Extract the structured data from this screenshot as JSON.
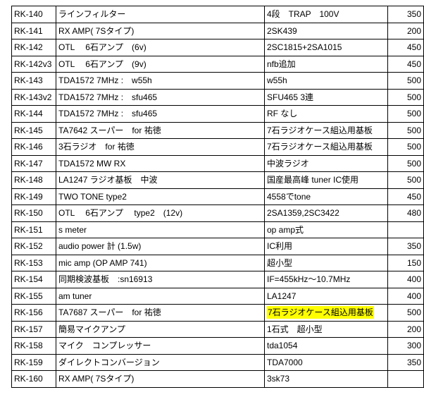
{
  "highlight_color": "#ffff00",
  "rows": [
    {
      "id": "RK-140",
      "name": "ラインフィルター",
      "note": "4段　TRAP　100V",
      "num": "350"
    },
    {
      "id": "RK-141",
      "name": "RX AMP( 7Sタイプ)",
      "note": "2SK439",
      "num": "200"
    },
    {
      "id": "RK-142",
      "name": "OTL　 6石アンプ　(6v)",
      "note": "2SC1815+2SA1015",
      "num": "450"
    },
    {
      "id": "RK-142v3",
      "name": "OTL　 6石アンプ　(9v)",
      "note": "nfb追加",
      "num": "450"
    },
    {
      "id": "RK-143",
      "name": "TDA1572  7MHz :　w55h",
      "note": "w55h",
      "num": "500"
    },
    {
      "id": "RK-143v2",
      "name": "TDA1572  7MHz :　sfu465",
      "note": "SFU465 3連",
      "num": "500"
    },
    {
      "id": "RK-144",
      "name": "TDA1572  7MHz :　sfu465",
      "note": "RF なし",
      "num": "500"
    },
    {
      "id": "RK-145",
      "name": "TA7642 スーパー　for 祐徳",
      "note": "7石ラジオケース組込用基板",
      "num": "500"
    },
    {
      "id": "RK-146",
      "name": "3石ラジオ　for 祐徳",
      "note": "7石ラジオケース組込用基板",
      "num": "500"
    },
    {
      "id": "RK-147",
      "name": "TDA1572 MW RX",
      "note": "中波ラジオ",
      "num": "500"
    },
    {
      "id": "RK-148",
      "name": "LA1247 ラジオ基板　中波",
      "note": "国産最高峰 tuner IC使用",
      "num": "500"
    },
    {
      "id": "RK-149",
      "name": "TWO TONE type2",
      "note": "4558でtone",
      "num": "450"
    },
    {
      "id": "RK-150",
      "name": "OTL　 6石アンプ　 type2　(12v)",
      "note": "2SA1359,2SC3422",
      "num": "480"
    },
    {
      "id": "RK-151",
      "name": "s meter",
      "note": "op amp式",
      "num": ""
    },
    {
      "id": "RK-152",
      "name": "audio power 計 (1.5w)",
      "note": "IC利用",
      "num": "350"
    },
    {
      "id": "RK-153",
      "name": "mic amp (OP AMP 741)",
      "note": "超小型",
      "num": "150"
    },
    {
      "id": "RK-154",
      "name": "同期検波基板　:sn16913",
      "note": "IF=455kHz～10.7MHz",
      "num": "400"
    },
    {
      "id": "RK-155",
      "name": "am tuner",
      "note": "LA1247",
      "num": "400"
    },
    {
      "id": "RK-156",
      "name": "TA7687 スーパー　for 祐徳",
      "note": "7石ラジオケース組込用基板",
      "num": "500",
      "highlight": true
    },
    {
      "id": "RK-157",
      "name": "簡易マイクアンプ",
      "note": "1石式　超小型",
      "num": "200"
    },
    {
      "id": "RK-158",
      "name": "マイク　コンプレッサー",
      "note": "tda1054",
      "num": "300"
    },
    {
      "id": "RK-159",
      "name": "ダイレクトコンバージョン",
      "note": "TDA7000",
      "num": "350"
    },
    {
      "id": "RK-160",
      "name": "RX AMP( 7Sタイプ)",
      "note": "3sk73",
      "num": ""
    }
  ]
}
